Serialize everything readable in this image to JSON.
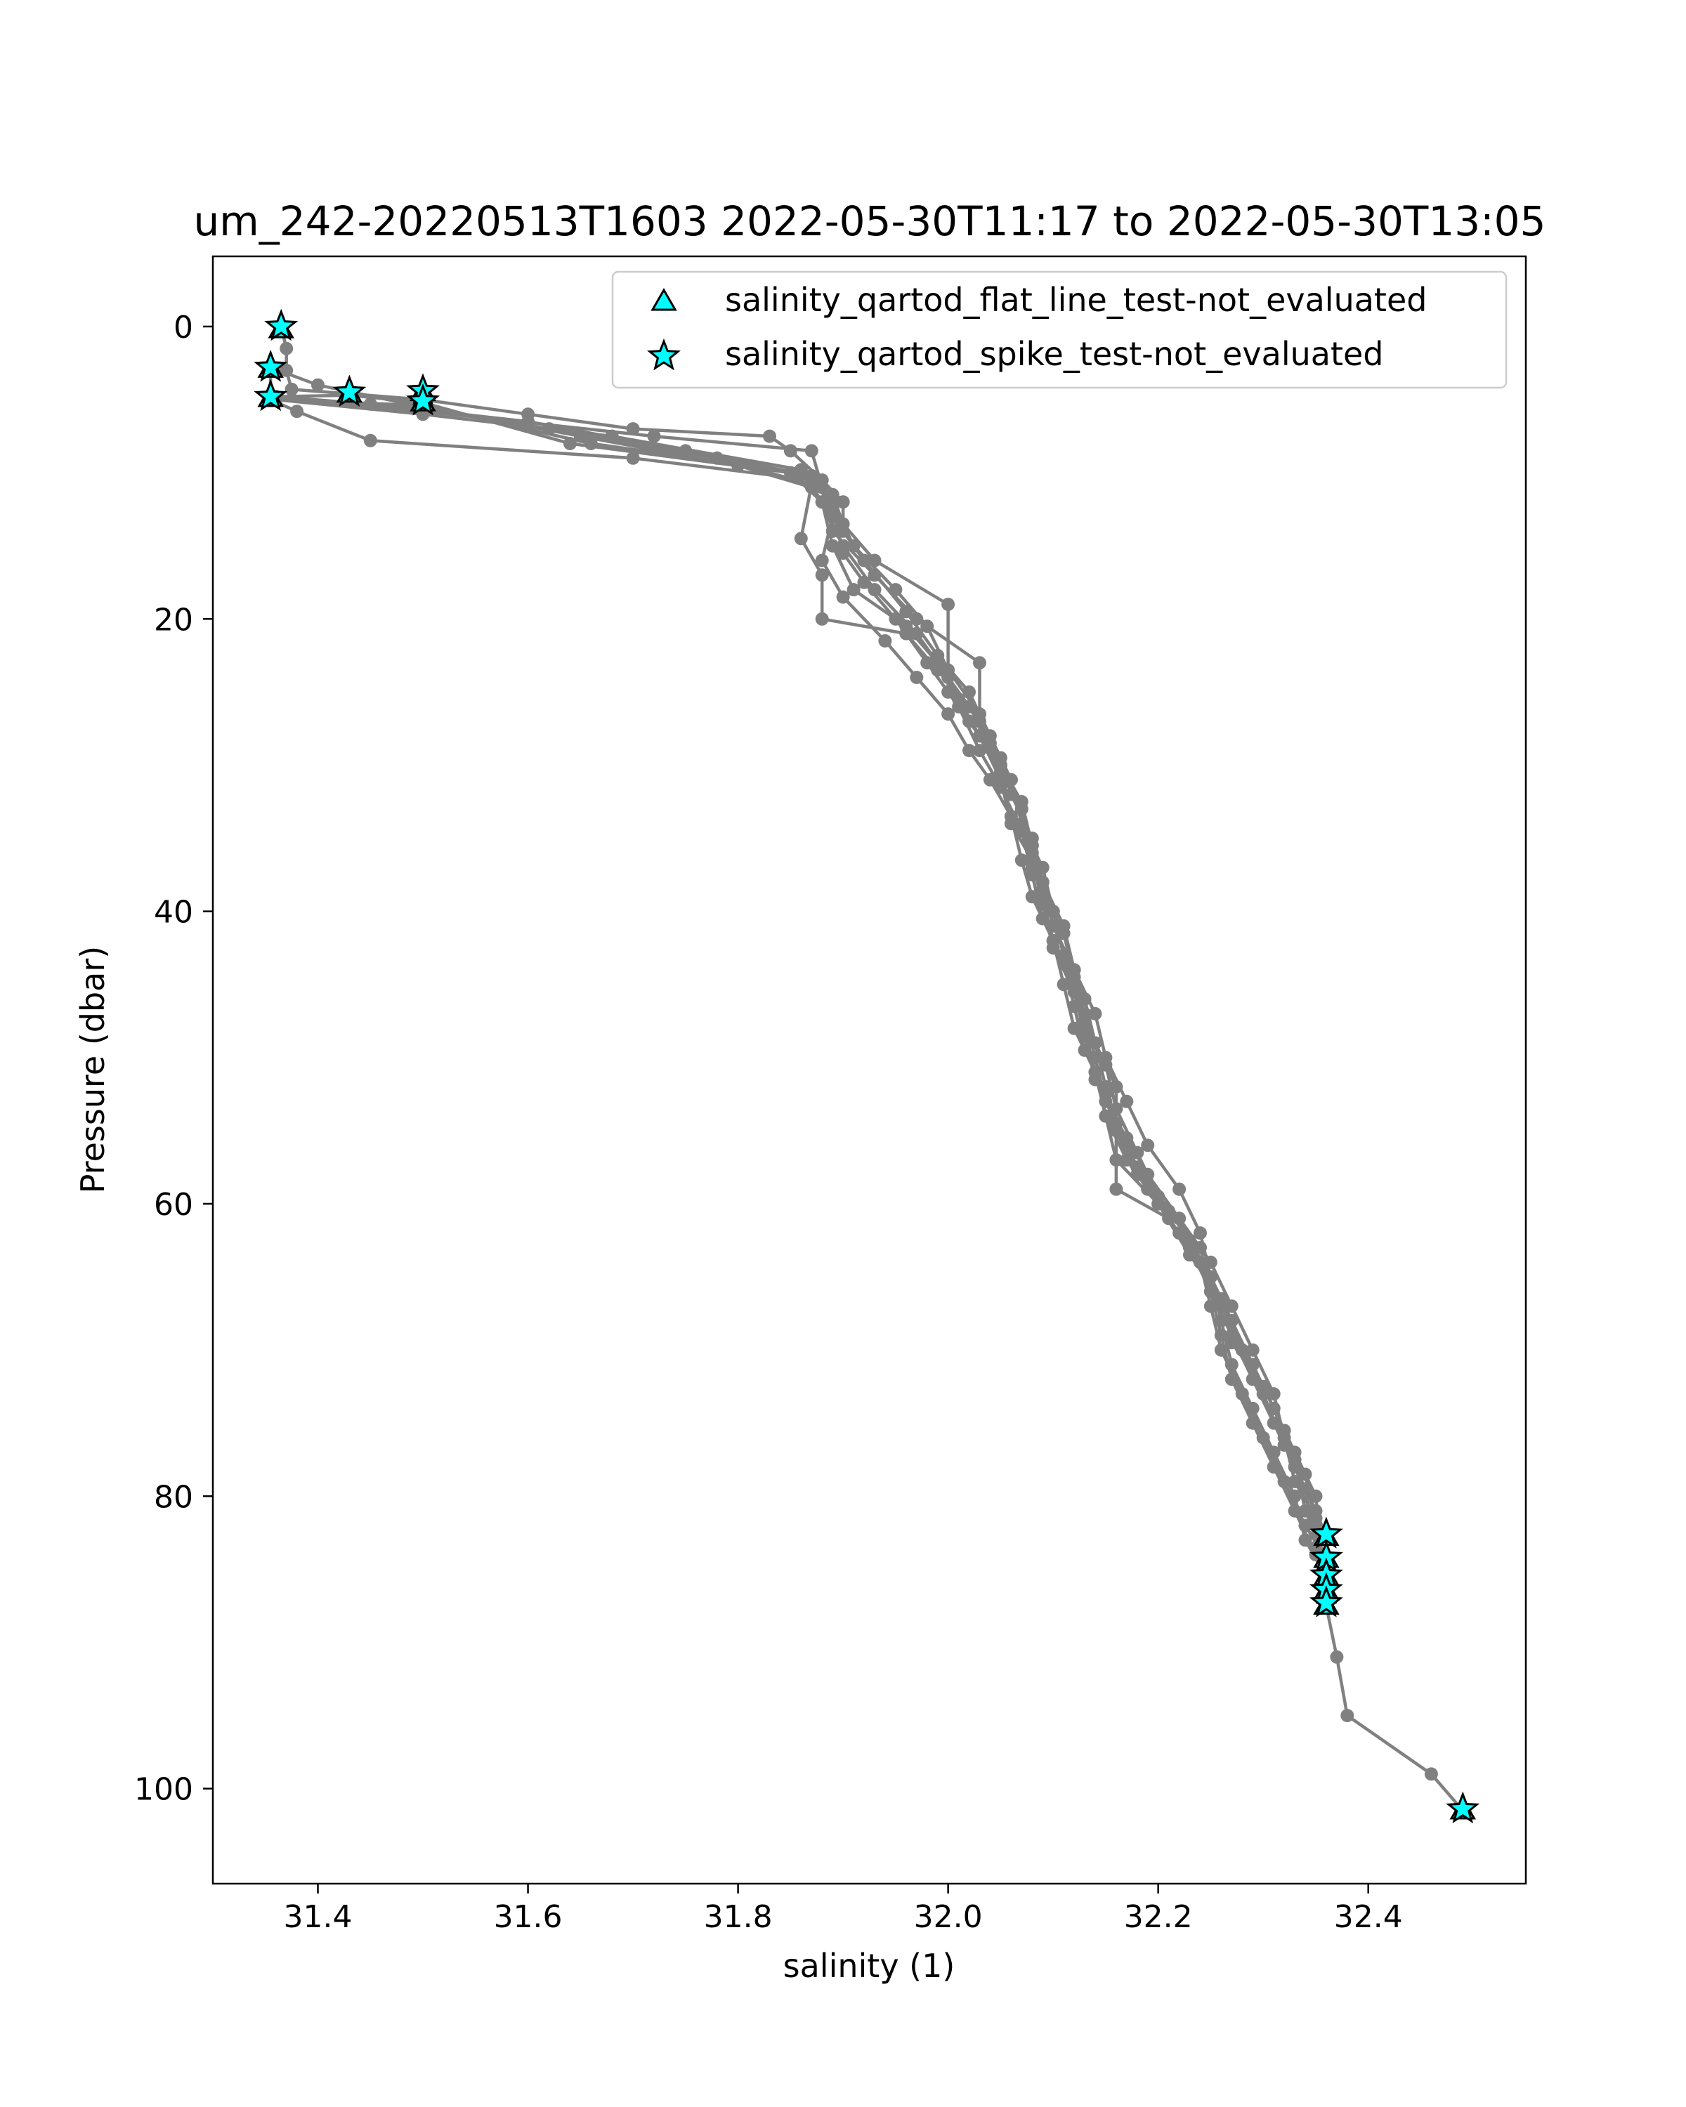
{
  "chart_data": {
    "type": "scatter",
    "title": "um_242-20220513T1603 2022-05-30T11:17 to 2022-05-30T13:05",
    "xlabel": "salinity (1)",
    "ylabel": "Pressure (dbar)",
    "xlim": [
      31.3,
      32.55
    ],
    "ylim": [
      106.5,
      -4.8
    ],
    "y_inverted": true,
    "grid": false,
    "legend_position": "top-right",
    "xticks": [
      31.4,
      31.6,
      31.8,
      32.0,
      32.2,
      32.4
    ],
    "xtick_labels": [
      "31.4",
      "31.6",
      "31.8",
      "32.0",
      "32.2",
      "32.4"
    ],
    "yticks": [
      0,
      20,
      40,
      60,
      80,
      100
    ],
    "ytick_labels": [
      "0",
      "20",
      "40",
      "60",
      "80",
      "100"
    ],
    "profile_color": "#808080",
    "marker_fill": "#00ffff",
    "marker_edge": "#000000",
    "profiles": [
      [
        [
          31.365,
          0.0
        ],
        [
          31.37,
          1.5
        ],
        [
          31.37,
          3.0
        ],
        [
          31.375,
          4.3
        ],
        [
          31.43,
          4.6
        ],
        [
          31.5,
          5.0
        ],
        [
          31.6,
          6.0
        ],
        [
          31.7,
          7.0
        ],
        [
          31.83,
          7.5
        ],
        [
          31.85,
          8.5
        ],
        [
          31.88,
          10.5
        ],
        [
          31.9,
          12.0
        ],
        [
          31.9,
          14.0
        ],
        [
          31.92,
          16.0
        ],
        [
          31.96,
          19.5
        ],
        [
          31.99,
          22.5
        ],
        [
          32.02,
          25.0
        ],
        [
          32.04,
          28.0
        ],
        [
          32.06,
          31.0
        ],
        [
          32.07,
          34.0
        ],
        [
          32.08,
          37.0
        ],
        [
          32.1,
          40.0
        ],
        [
          32.11,
          43.0
        ],
        [
          32.13,
          46.0
        ],
        [
          32.14,
          49.0
        ],
        [
          32.15,
          52.0
        ],
        [
          32.16,
          55.0
        ],
        [
          32.18,
          58.0
        ],
        [
          32.22,
          61.0
        ],
        [
          32.25,
          64.0
        ],
        [
          32.27,
          67.0
        ],
        [
          32.29,
          70.0
        ],
        [
          32.31,
          73.0
        ],
        [
          32.32,
          76.0
        ],
        [
          32.33,
          79.0
        ],
        [
          32.35,
          81.5
        ],
        [
          32.36,
          82.8
        ]
      ],
      [
        [
          32.36,
          82.8
        ],
        [
          32.35,
          81.0
        ],
        [
          32.33,
          78.0
        ],
        [
          32.31,
          75.0
        ],
        [
          32.29,
          72.0
        ],
        [
          32.27,
          69.0
        ],
        [
          32.25,
          66.0
        ],
        [
          32.23,
          63.0
        ],
        [
          32.2,
          60.0
        ],
        [
          32.17,
          57.0
        ],
        [
          32.15,
          54.0
        ],
        [
          32.14,
          51.0
        ],
        [
          32.12,
          48.0
        ],
        [
          32.11,
          45.0
        ],
        [
          32.1,
          42.0
        ],
        [
          32.09,
          39.0
        ],
        [
          32.08,
          36.0
        ],
        [
          32.07,
          33.0
        ],
        [
          32.05,
          30.0
        ],
        [
          32.03,
          27.0
        ],
        [
          32.0,
          24.0
        ],
        [
          31.97,
          21.0
        ],
        [
          31.93,
          18.0
        ],
        [
          31.9,
          15.0
        ],
        [
          31.88,
          12.0
        ],
        [
          31.85,
          10.0
        ],
        [
          31.64,
          8.0
        ],
        [
          31.5,
          5.2
        ],
        [
          31.43,
          4.7
        ],
        [
          31.36,
          4.8
        ]
      ],
      [
        [
          31.36,
          4.8
        ],
        [
          31.45,
          5.3
        ],
        [
          31.6,
          6.5
        ],
        [
          31.75,
          8.5
        ],
        [
          31.87,
          10.2
        ],
        [
          31.89,
          12.5
        ],
        [
          31.9,
          15.5
        ],
        [
          31.92,
          17.5
        ],
        [
          31.95,
          20.0
        ],
        [
          31.98,
          23.0
        ],
        [
          32.01,
          26.0
        ],
        [
          32.03,
          29.0
        ],
        [
          32.05,
          31.5
        ],
        [
          32.07,
          34.5
        ],
        [
          32.08,
          37.5
        ],
        [
          32.09,
          40.5
        ],
        [
          32.11,
          43.5
        ],
        [
          32.12,
          46.5
        ],
        [
          32.13,
          49.5
        ],
        [
          32.15,
          52.5
        ],
        [
          32.17,
          56.0
        ],
        [
          32.19,
          59.0
        ],
        [
          32.22,
          62.0
        ],
        [
          32.25,
          65.0
        ],
        [
          32.27,
          68.0
        ],
        [
          32.29,
          71.0
        ],
        [
          32.31,
          74.0
        ],
        [
          32.33,
          77.5
        ],
        [
          32.34,
          81.0
        ],
        [
          32.36,
          84.3
        ]
      ],
      [
        [
          32.36,
          84.3
        ],
        [
          32.34,
          82.0
        ],
        [
          32.32,
          79.0
        ],
        [
          32.3,
          76.0
        ],
        [
          32.28,
          73.0
        ],
        [
          32.26,
          70.0
        ],
        [
          32.25,
          67.0
        ],
        [
          32.24,
          64.0
        ],
        [
          32.22,
          61.0
        ],
        [
          32.19,
          58.0
        ],
        [
          32.17,
          55.5
        ],
        [
          32.15,
          53.0
        ],
        [
          32.14,
          50.0
        ],
        [
          32.13,
          47.0
        ],
        [
          32.12,
          44.0
        ],
        [
          32.1,
          41.0
        ],
        [
          32.09,
          38.0
        ],
        [
          32.08,
          35.0
        ],
        [
          32.06,
          32.0
        ],
        [
          32.05,
          29.5
        ],
        [
          32.03,
          26.5
        ],
        [
          32.0,
          23.5
        ],
        [
          31.98,
          20.5
        ],
        [
          31.95,
          18.0
        ],
        [
          31.91,
          15.0
        ],
        [
          31.89,
          12.0
        ],
        [
          31.87,
          10.5
        ],
        [
          31.7,
          9.0
        ],
        [
          31.45,
          7.8
        ],
        [
          31.38,
          5.8
        ],
        [
          31.355,
          5.0
        ],
        [
          31.355,
          2.8
        ]
      ],
      [
        [
          31.355,
          2.8
        ],
        [
          31.4,
          4.0
        ],
        [
          31.5,
          5.5
        ],
        [
          31.65,
          7.5
        ],
        [
          31.8,
          9.5
        ],
        [
          31.87,
          11.0
        ],
        [
          31.89,
          13.0
        ],
        [
          31.88,
          16.0
        ],
        [
          31.9,
          18.5
        ],
        [
          31.94,
          21.5
        ],
        [
          31.97,
          24.0
        ],
        [
          32.0,
          26.5
        ],
        [
          32.02,
          29.0
        ],
        [
          32.04,
          31.0
        ],
        [
          32.06,
          33.5
        ],
        [
          32.07,
          36.5
        ],
        [
          32.08,
          39.0
        ],
        [
          32.1,
          42.0
        ],
        [
          32.12,
          45.0
        ],
        [
          32.13,
          48.0
        ],
        [
          32.14,
          51.0
        ],
        [
          32.15,
          54.0
        ],
        [
          32.16,
          57.0
        ],
        [
          32.2,
          60.0
        ],
        [
          32.23,
          63.5
        ],
        [
          32.26,
          66.5
        ],
        [
          32.27,
          69.5
        ],
        [
          32.3,
          72.5
        ],
        [
          32.32,
          75.5
        ],
        [
          32.34,
          78.5
        ],
        [
          32.35,
          82.0
        ],
        [
          32.36,
          85.5
        ]
      ],
      [
        [
          32.36,
          85.5
        ],
        [
          32.34,
          83.0
        ],
        [
          32.33,
          80.0
        ],
        [
          32.31,
          77.0
        ],
        [
          32.29,
          74.0
        ],
        [
          32.27,
          71.0
        ],
        [
          32.26,
          68.0
        ],
        [
          32.25,
          65.0
        ],
        [
          32.23,
          62.5
        ],
        [
          32.2,
          59.5
        ],
        [
          32.18,
          56.5
        ],
        [
          32.16,
          53.5
        ],
        [
          32.15,
          50.5
        ],
        [
          32.13,
          47.5
        ],
        [
          32.12,
          44.5
        ],
        [
          32.11,
          41.5
        ],
        [
          32.09,
          38.5
        ],
        [
          32.08,
          35.5
        ],
        [
          32.07,
          32.5
        ],
        [
          32.05,
          30.0
        ],
        [
          32.02,
          27.0
        ],
        [
          32.0,
          25.0
        ],
        [
          32.0,
          19.0
        ],
        [
          31.93,
          16.0
        ],
        [
          31.9,
          13.5
        ],
        [
          31.89,
          11.5
        ],
        [
          31.86,
          10.0
        ],
        [
          31.66,
          8.0
        ],
        [
          31.5,
          5.4
        ],
        [
          31.36,
          5.0
        ]
      ],
      [
        [
          31.36,
          5.0
        ],
        [
          31.5,
          5.6
        ],
        [
          31.62,
          7.0
        ],
        [
          31.78,
          9.0
        ],
        [
          31.87,
          10.8
        ],
        [
          31.86,
          14.5
        ],
        [
          31.88,
          17.0
        ],
        [
          31.88,
          20.0
        ],
        [
          31.96,
          21.0
        ],
        [
          31.99,
          23.5
        ],
        [
          32.02,
          26.0
        ],
        [
          32.04,
          28.5
        ],
        [
          32.06,
          31.0
        ],
        [
          32.07,
          34.0
        ],
        [
          32.09,
          37.0
        ],
        [
          32.1,
          40.0
        ],
        [
          32.11,
          43.0
        ],
        [
          32.13,
          46.0
        ],
        [
          32.14,
          49.0
        ],
        [
          32.16,
          52.0
        ],
        [
          32.16,
          59.0
        ],
        [
          32.21,
          61.0
        ],
        [
          32.24,
          64.0
        ],
        [
          32.26,
          67.0
        ],
        [
          32.28,
          70.0
        ],
        [
          32.3,
          73.0
        ],
        [
          32.32,
          76.5
        ],
        [
          32.34,
          79.5
        ],
        [
          32.35,
          83.5
        ],
        [
          32.36,
          86.5
        ]
      ],
      [
        [
          32.36,
          86.5
        ],
        [
          32.35,
          84.0
        ],
        [
          32.33,
          81.0
        ],
        [
          32.31,
          78.0
        ],
        [
          32.29,
          75.0
        ],
        [
          32.27,
          72.0
        ],
        [
          32.26,
          69.0
        ],
        [
          32.25,
          66.0
        ],
        [
          32.24,
          63.0
        ],
        [
          32.21,
          60.5
        ],
        [
          32.18,
          57.5
        ],
        [
          32.16,
          54.5
        ],
        [
          32.14,
          51.5
        ],
        [
          32.13,
          48.5
        ],
        [
          32.12,
          45.5
        ],
        [
          32.1,
          42.5
        ],
        [
          32.09,
          39.5
        ],
        [
          32.08,
          36.5
        ],
        [
          32.06,
          34.0
        ],
        [
          32.05,
          31.0
        ],
        [
          32.03,
          28.0
        ],
        [
          32.03,
          23.0
        ],
        [
          31.97,
          20.0
        ],
        [
          31.93,
          17.0
        ],
        [
          31.89,
          14.0
        ],
        [
          31.88,
          11.0
        ],
        [
          31.87,
          8.5
        ],
        [
          31.72,
          7.5
        ],
        [
          31.5,
          5.8
        ],
        [
          31.36,
          5.0
        ]
      ],
      [
        [
          31.36,
          5.0
        ],
        [
          31.5,
          6.0
        ],
        [
          31.68,
          7.5
        ],
        [
          31.86,
          9.8
        ],
        [
          31.88,
          12.0
        ],
        [
          31.89,
          15.0
        ],
        [
          31.91,
          18.0
        ],
        [
          31.96,
          20.5
        ],
        [
          31.99,
          23.0
        ],
        [
          32.01,
          25.5
        ],
        [
          32.03,
          28.0
        ],
        [
          32.05,
          30.5
        ],
        [
          32.07,
          33.0
        ],
        [
          32.08,
          35.5
        ],
        [
          32.09,
          38.0
        ],
        [
          32.11,
          41.0
        ],
        [
          32.12,
          44.0
        ],
        [
          32.14,
          47.0
        ],
        [
          32.15,
          50.0
        ],
        [
          32.17,
          53.0
        ],
        [
          32.19,
          56.0
        ],
        [
          32.22,
          59.0
        ],
        [
          32.24,
          62.0
        ],
        [
          32.25,
          65.0
        ],
        [
          32.27,
          68.0
        ],
        [
          32.29,
          71.0
        ],
        [
          32.31,
          74.0
        ],
        [
          32.33,
          77.0
        ],
        [
          32.35,
          80.0
        ],
        [
          32.36,
          87.5
        ],
        [
          32.37,
          91.0
        ],
        [
          32.38,
          95.0
        ],
        [
          32.46,
          99.0
        ],
        [
          32.49,
          101.5
        ]
      ]
    ],
    "series": [
      {
        "name": "salinity_qartod_flat_line_test-not_evaluated",
        "marker": "triangle",
        "x": [
          31.365,
          31.355,
          31.355,
          31.43,
          31.5,
          31.5,
          32.36,
          32.36,
          32.36,
          32.36,
          32.36,
          32.49
        ],
        "y": [
          0.2,
          2.9,
          4.9,
          4.6,
          4.5,
          5.2,
          82.8,
          84.3,
          85.5,
          86.5,
          87.5,
          101.5
        ]
      },
      {
        "name": "salinity_qartod_spike_test-not_evaluated",
        "marker": "star",
        "x": [
          31.365,
          31.355,
          31.355,
          31.43,
          31.5,
          31.5,
          32.36,
          32.36,
          32.36,
          32.36,
          32.36,
          32.49
        ],
        "y": [
          0.0,
          2.8,
          4.8,
          4.5,
          4.4,
          5.1,
          82.6,
          84.2,
          85.4,
          86.4,
          87.3,
          101.4
        ]
      }
    ]
  }
}
